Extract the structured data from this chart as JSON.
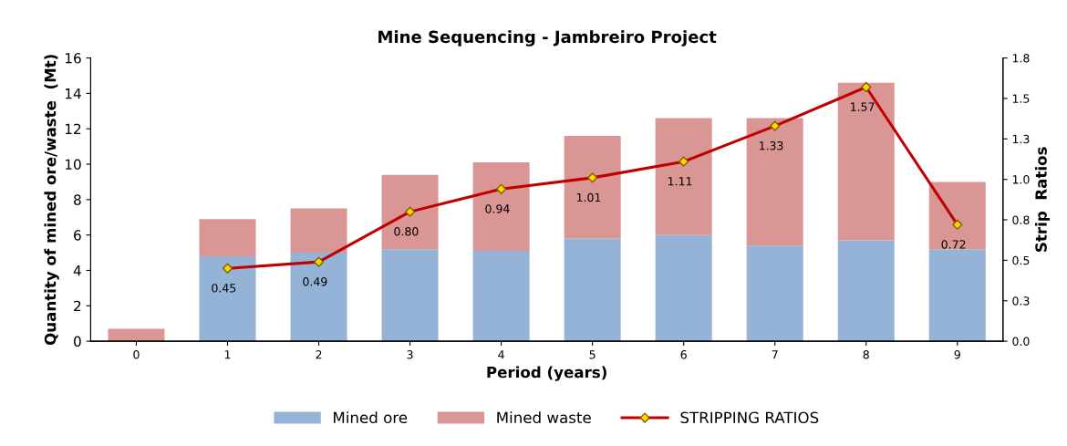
{
  "chart_data": {
    "type": "bar",
    "title": "Mine Sequencing - Jambreiro Project",
    "xlabel": "Period (years)",
    "ylabel": "Quantity of mined ore/waste  (Mt)",
    "y2label": "Strip  Ratios",
    "categories": [
      "0",
      "1",
      "2",
      "3",
      "4",
      "5",
      "6",
      "7",
      "8",
      "9"
    ],
    "stacked": true,
    "series": [
      {
        "name": "Mined ore",
        "color": "#95b3d7",
        "values": [
          0,
          4.8,
          5.0,
          5.2,
          5.1,
          5.8,
          6.0,
          5.4,
          5.7,
          5.2
        ]
      },
      {
        "name": "Mined waste",
        "color": "#d99694",
        "values": [
          0.7,
          2.1,
          2.5,
          4.2,
          5.0,
          5.8,
          6.6,
          7.2,
          8.9,
          3.8
        ]
      },
      {
        "name": "STRIPPING RATIOS",
        "type": "line",
        "axis": "y2",
        "color": "#c00000",
        "marker": "diamond",
        "values": [
          null,
          0.45,
          0.49,
          0.8,
          0.94,
          1.01,
          1.11,
          1.33,
          1.57,
          0.72
        ],
        "value_labels": [
          null,
          "0.45",
          "0.49",
          "0.80",
          "0.94",
          "1.01",
          "1.11",
          "1.33",
          "1.57",
          "0.72"
        ]
      }
    ],
    "ylim": [
      0,
      16
    ],
    "yticks": [
      0,
      2,
      4,
      6,
      8,
      10,
      12,
      14,
      16
    ],
    "y2lim": [
      0,
      1.75
    ],
    "y2ticks": [
      {
        "value": 0,
        "label": "0.0"
      },
      {
        "value": 0.25,
        "label": "0.3"
      },
      {
        "value": 0.5,
        "label": "0.5"
      },
      {
        "value": 0.75,
        "label": "0.8"
      },
      {
        "value": 1.0,
        "label": "1.0"
      },
      {
        "value": 1.25,
        "label": "1.3"
      },
      {
        "value": 1.5,
        "label": "1.5"
      },
      {
        "value": 1.75,
        "label": "1.8"
      }
    ],
    "legend": "bottom",
    "grid": false
  }
}
